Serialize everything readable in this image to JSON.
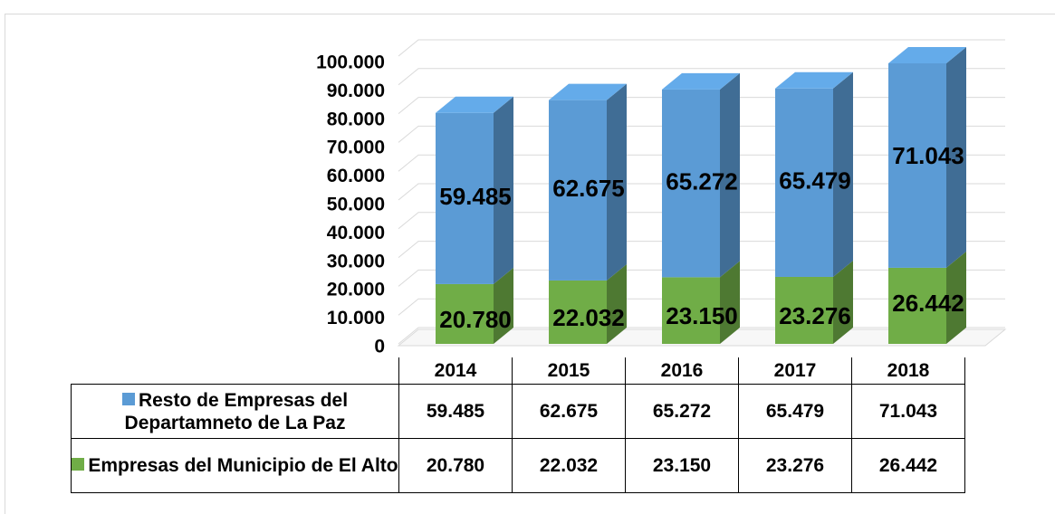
{
  "chart_data": {
    "type": "bar3d_stacked",
    "categories": [
      "2014",
      "2015",
      "2016",
      "2017",
      "2018"
    ],
    "series": [
      {
        "name": "Empresas del Municipio de El Alto",
        "color": "#70ad47",
        "values": [
          20780,
          22032,
          23150,
          23276,
          26442
        ],
        "value_labels": [
          "20.780",
          "22.032",
          "23.150",
          "23.276",
          "26.442"
        ]
      },
      {
        "name": "Resto de Empresas del Departamneto de La Paz",
        "color": "#5b9bd5",
        "values": [
          59485,
          62675,
          65272,
          65479,
          71043
        ],
        "value_labels": [
          "59.485",
          "62.675",
          "65.272",
          "65.479",
          "71.043"
        ]
      }
    ],
    "ylim": [
      0,
      100000
    ],
    "yticks": [
      0,
      {
        "value": 10000,
        "label": "10.000"
      },
      {
        "value": 20000,
        "label": "20.000"
      },
      {
        "value": 30000,
        "label": "30.000"
      },
      {
        "value": 40000,
        "label": "40.000"
      },
      {
        "value": 50000,
        "label": "50.000"
      },
      {
        "value": 60000,
        "label": "60.000"
      },
      {
        "value": 70000,
        "label": "70.000"
      },
      {
        "value": 80000,
        "label": "80.000"
      },
      {
        "value": 90000,
        "label": "90.000"
      },
      {
        "value": 100000,
        "label": "100.000"
      }
    ],
    "grid": true
  }
}
